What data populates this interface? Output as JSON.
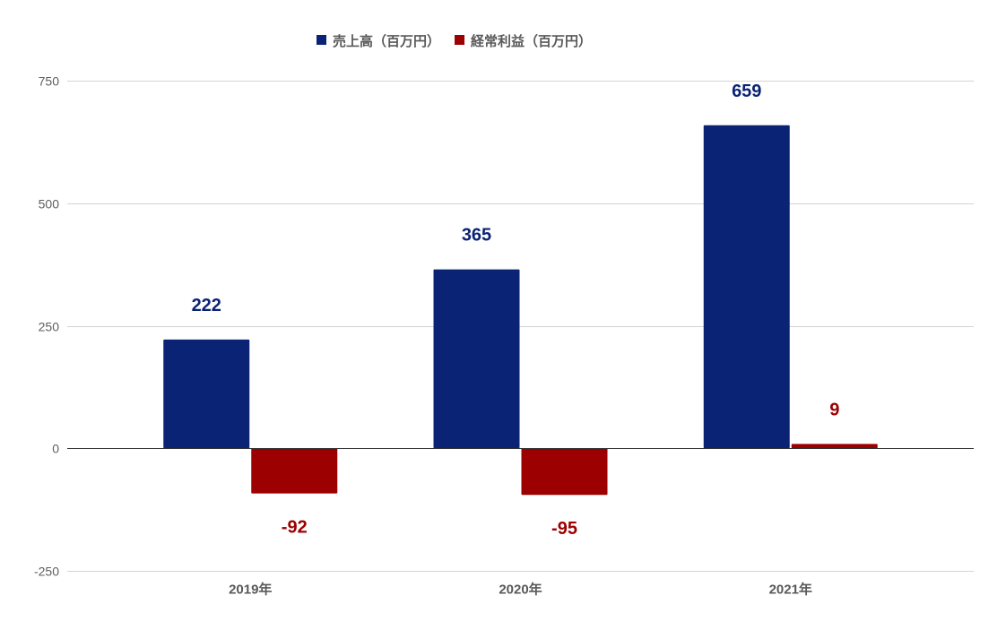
{
  "chart_data": {
    "type": "bar",
    "categories": [
      "2019年",
      "2020年",
      "2021年"
    ],
    "series": [
      {
        "name": "売上高（百万円）",
        "values": [
          222,
          365,
          659
        ],
        "color": "#0b2375"
      },
      {
        "name": "経常利益（百万円）",
        "values": [
          -92,
          -95,
          9
        ],
        "color": "#9c0000"
      }
    ],
    "ylim": [
      -250,
      750
    ],
    "yticks": [
      750,
      500,
      250,
      0,
      -250
    ],
    "data_labels": true,
    "grid": true,
    "legend": "top"
  }
}
